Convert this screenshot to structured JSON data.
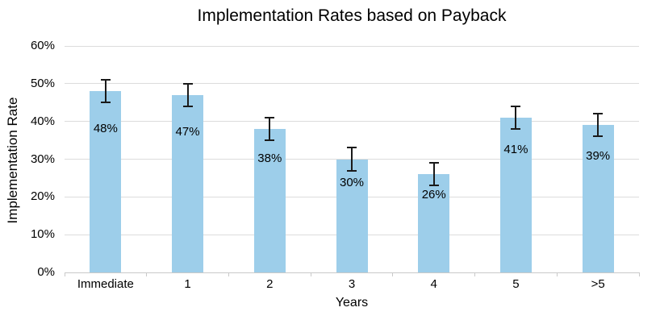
{
  "chart_data": {
    "type": "bar",
    "title": "Implementation Rates based on Payback",
    "xlabel": "Years",
    "ylabel": "Implementation Rate",
    "categories": [
      "Immediate",
      "1",
      "2",
      "3",
      "4",
      "5",
      ">5"
    ],
    "values": [
      48,
      47,
      38,
      30,
      26,
      41,
      39
    ],
    "errors": [
      3,
      3,
      3,
      3,
      3,
      3,
      3
    ],
    "bar_labels": [
      "48%",
      "47%",
      "38%",
      "30%",
      "26%",
      "41%",
      "39%"
    ],
    "ylim": [
      0,
      60
    ],
    "ytick_step": 10,
    "ytick_labels": [
      "0%",
      "10%",
      "20%",
      "30%",
      "40%",
      "50%",
      "60%"
    ],
    "grid": true,
    "legend": "none",
    "bar_color": "#9dceea",
    "gridline_color": "#dcdcdc",
    "axis_line_color": "#c9c9c9",
    "error_bar_color": "#1a1a1a",
    "text_color": "#000000"
  }
}
